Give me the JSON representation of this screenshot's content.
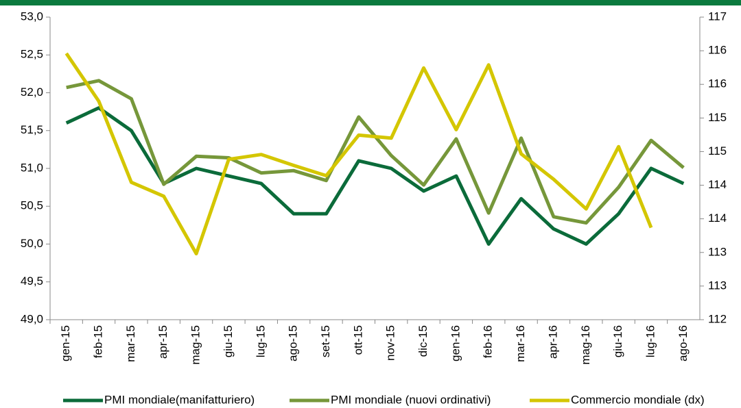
{
  "chart_data": {
    "type": "line",
    "categories": [
      "gen-15",
      "feb-15",
      "mar-15",
      "apr-15",
      "mag-15",
      "giu-15",
      "lug-15",
      "ago-15",
      "set-15",
      "ott-15",
      "nov-15",
      "dic-15",
      "gen-16",
      "feb-16",
      "mar-16",
      "apr-16",
      "mag-16",
      "giu-16",
      "lug-16",
      "ago-16"
    ],
    "series": [
      {
        "name": "PMI mondiale(manifatturiero)",
        "color": "#0b6b3a",
        "values": [
          51.6,
          51.8,
          51.5,
          50.8,
          51.0,
          50.9,
          50.8,
          50.4,
          50.4,
          51.1,
          51.0,
          50.7,
          50.9,
          50.0,
          50.6,
          50.2,
          50.0,
          50.4,
          51.0,
          50.8
        ]
      },
      {
        "name": "PMI mondiale (nuovi ordinativi)",
        "color": "#76973a",
        "values": [
          52.07,
          52.16,
          51.92,
          50.79,
          51.16,
          51.14,
          50.94,
          50.97,
          50.84,
          51.68,
          51.17,
          50.78,
          51.39,
          50.41,
          51.4,
          50.36,
          50.28,
          50.75,
          51.37,
          51.01
        ]
      },
      {
        "name": "Commercio mondiale (dx)",
        "color": "#d4c600",
        "axis": "y2",
        "values": [
          116.4,
          115.61,
          114.27,
          114.04,
          113.09,
          114.65,
          114.73,
          114.55,
          114.38,
          115.05,
          115.0,
          116.16,
          115.14,
          116.21,
          114.74,
          114.32,
          113.83,
          114.86,
          113.52,
          null
        ]
      }
    ],
    "ylim": [
      49,
      53
    ],
    "yticks": [
      {
        "value": 49,
        "label": "49,0"
      },
      {
        "value": 49.5,
        "label": "49,5"
      },
      {
        "value": 50,
        "label": "50,0"
      },
      {
        "value": 50.5,
        "label": "50,5"
      },
      {
        "value": 51,
        "label": "51,0"
      },
      {
        "value": 51.5,
        "label": "51,5"
      },
      {
        "value": 52,
        "label": "52,0"
      },
      {
        "value": 52.5,
        "label": "52,5"
      },
      {
        "value": 53,
        "label": "53,0"
      }
    ],
    "y2lim": [
      112,
      117
    ],
    "y2ticks": [
      112,
      {
        "value": 112.556,
        "label": "113"
      },
      {
        "value": 113.111,
        "label": "113"
      },
      {
        "value": 113.667,
        "label": "114"
      },
      {
        "value": 114.222,
        "label": "114"
      },
      {
        "value": 114.778,
        "label": "115"
      },
      {
        "value": 115.333,
        "label": "115"
      },
      {
        "value": 115.889,
        "label": "116"
      },
      {
        "value": 116.444,
        "label": "116"
      },
      117
    ],
    "legend": "bottom"
  }
}
